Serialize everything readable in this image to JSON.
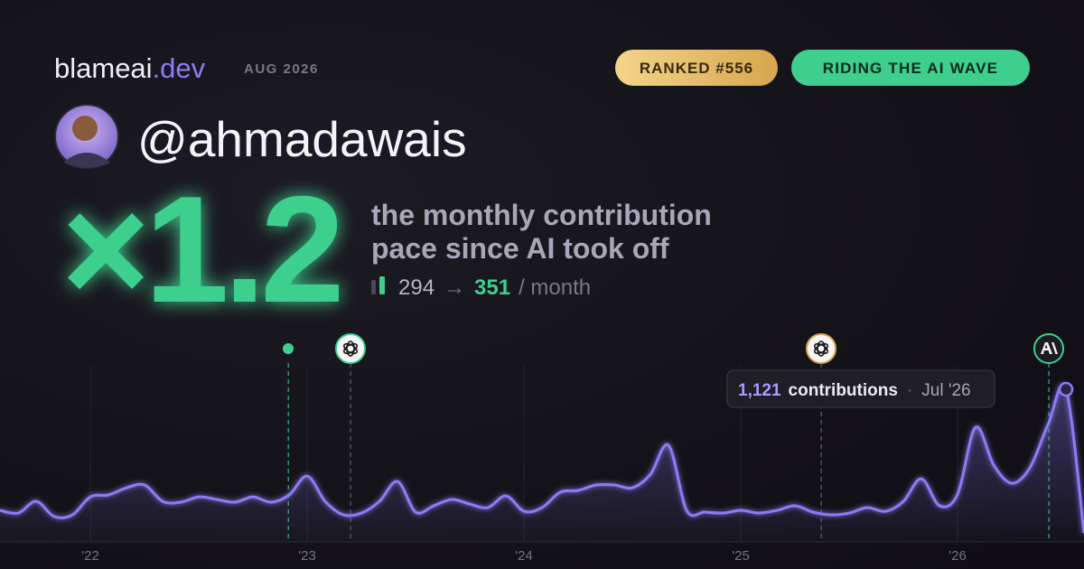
{
  "brand": {
    "name": "blameai",
    "tld": ".dev",
    "period": "AUG 2026"
  },
  "badges": [
    "RANKED #556",
    "RIDING THE AI WAVE"
  ],
  "username": "@ahmadawais",
  "multiplier": "×1.2",
  "description": [
    "the monthly contribution",
    "pace since AI took off"
  ],
  "stats": {
    "before": 294,
    "arrow": "→",
    "after": 351,
    "unit": "/ month"
  },
  "tooltip": {
    "value_label": "1,121",
    "unit": "contributions",
    "separator": "·",
    "date": "Jul '26"
  },
  "chart_data": {
    "type": "line",
    "color": "#8b7cf6",
    "x": [
      21.583,
      21.667,
      21.75,
      21.833,
      21.917,
      22,
      22.083,
      22.167,
      22.25,
      22.333,
      22.417,
      22.5,
      22.583,
      22.667,
      22.75,
      22.833,
      22.917,
      23,
      23.083,
      23.167,
      23.25,
      23.333,
      23.417,
      23.5,
      23.583,
      23.667,
      23.75,
      23.833,
      23.917,
      24,
      24.083,
      24.167,
      24.25,
      24.333,
      24.417,
      24.5,
      24.583,
      24.667,
      24.75,
      24.833,
      24.917,
      25,
      25.083,
      25.167,
      25.25,
      25.333,
      25.417,
      25.5,
      25.583,
      25.667,
      25.75,
      25.833,
      25.917,
      26,
      26.083,
      26.167,
      26.25,
      26.333,
      26.417,
      26.5,
      26.583
    ],
    "values": [
      232,
      212,
      298,
      186,
      199,
      331,
      345,
      398,
      418,
      298,
      292,
      331,
      312,
      292,
      331,
      292,
      345,
      484,
      298,
      199,
      212,
      298,
      444,
      219,
      265,
      312,
      278,
      252,
      338,
      225,
      252,
      365,
      378,
      418,
      418,
      398,
      497,
      709,
      232,
      219,
      212,
      232,
      212,
      232,
      265,
      219,
      199,
      212,
      252,
      225,
      298,
      464,
      265,
      351,
      842,
      563,
      431,
      544,
      862,
      1121,
      66
    ],
    "xlim": [
      21.583,
      26.583
    ],
    "ylim": [
      0,
      1327
    ],
    "xticks": [
      {
        "value": 22,
        "label": "'22"
      },
      {
        "value": 23,
        "label": "'23"
      },
      {
        "value": 24,
        "label": "'24"
      },
      {
        "value": 25,
        "label": "'25"
      },
      {
        "value": 26,
        "label": "'26"
      }
    ],
    "grid": true,
    "events": [
      {
        "x": 22.913,
        "color": "#3ecf8e"
      },
      {
        "x": 23.2,
        "color": "#6b6878"
      },
      {
        "x": 25.371,
        "color": "#6b6878"
      },
      {
        "x": 26.421,
        "color": "#3ecf8e"
      }
    ]
  }
}
